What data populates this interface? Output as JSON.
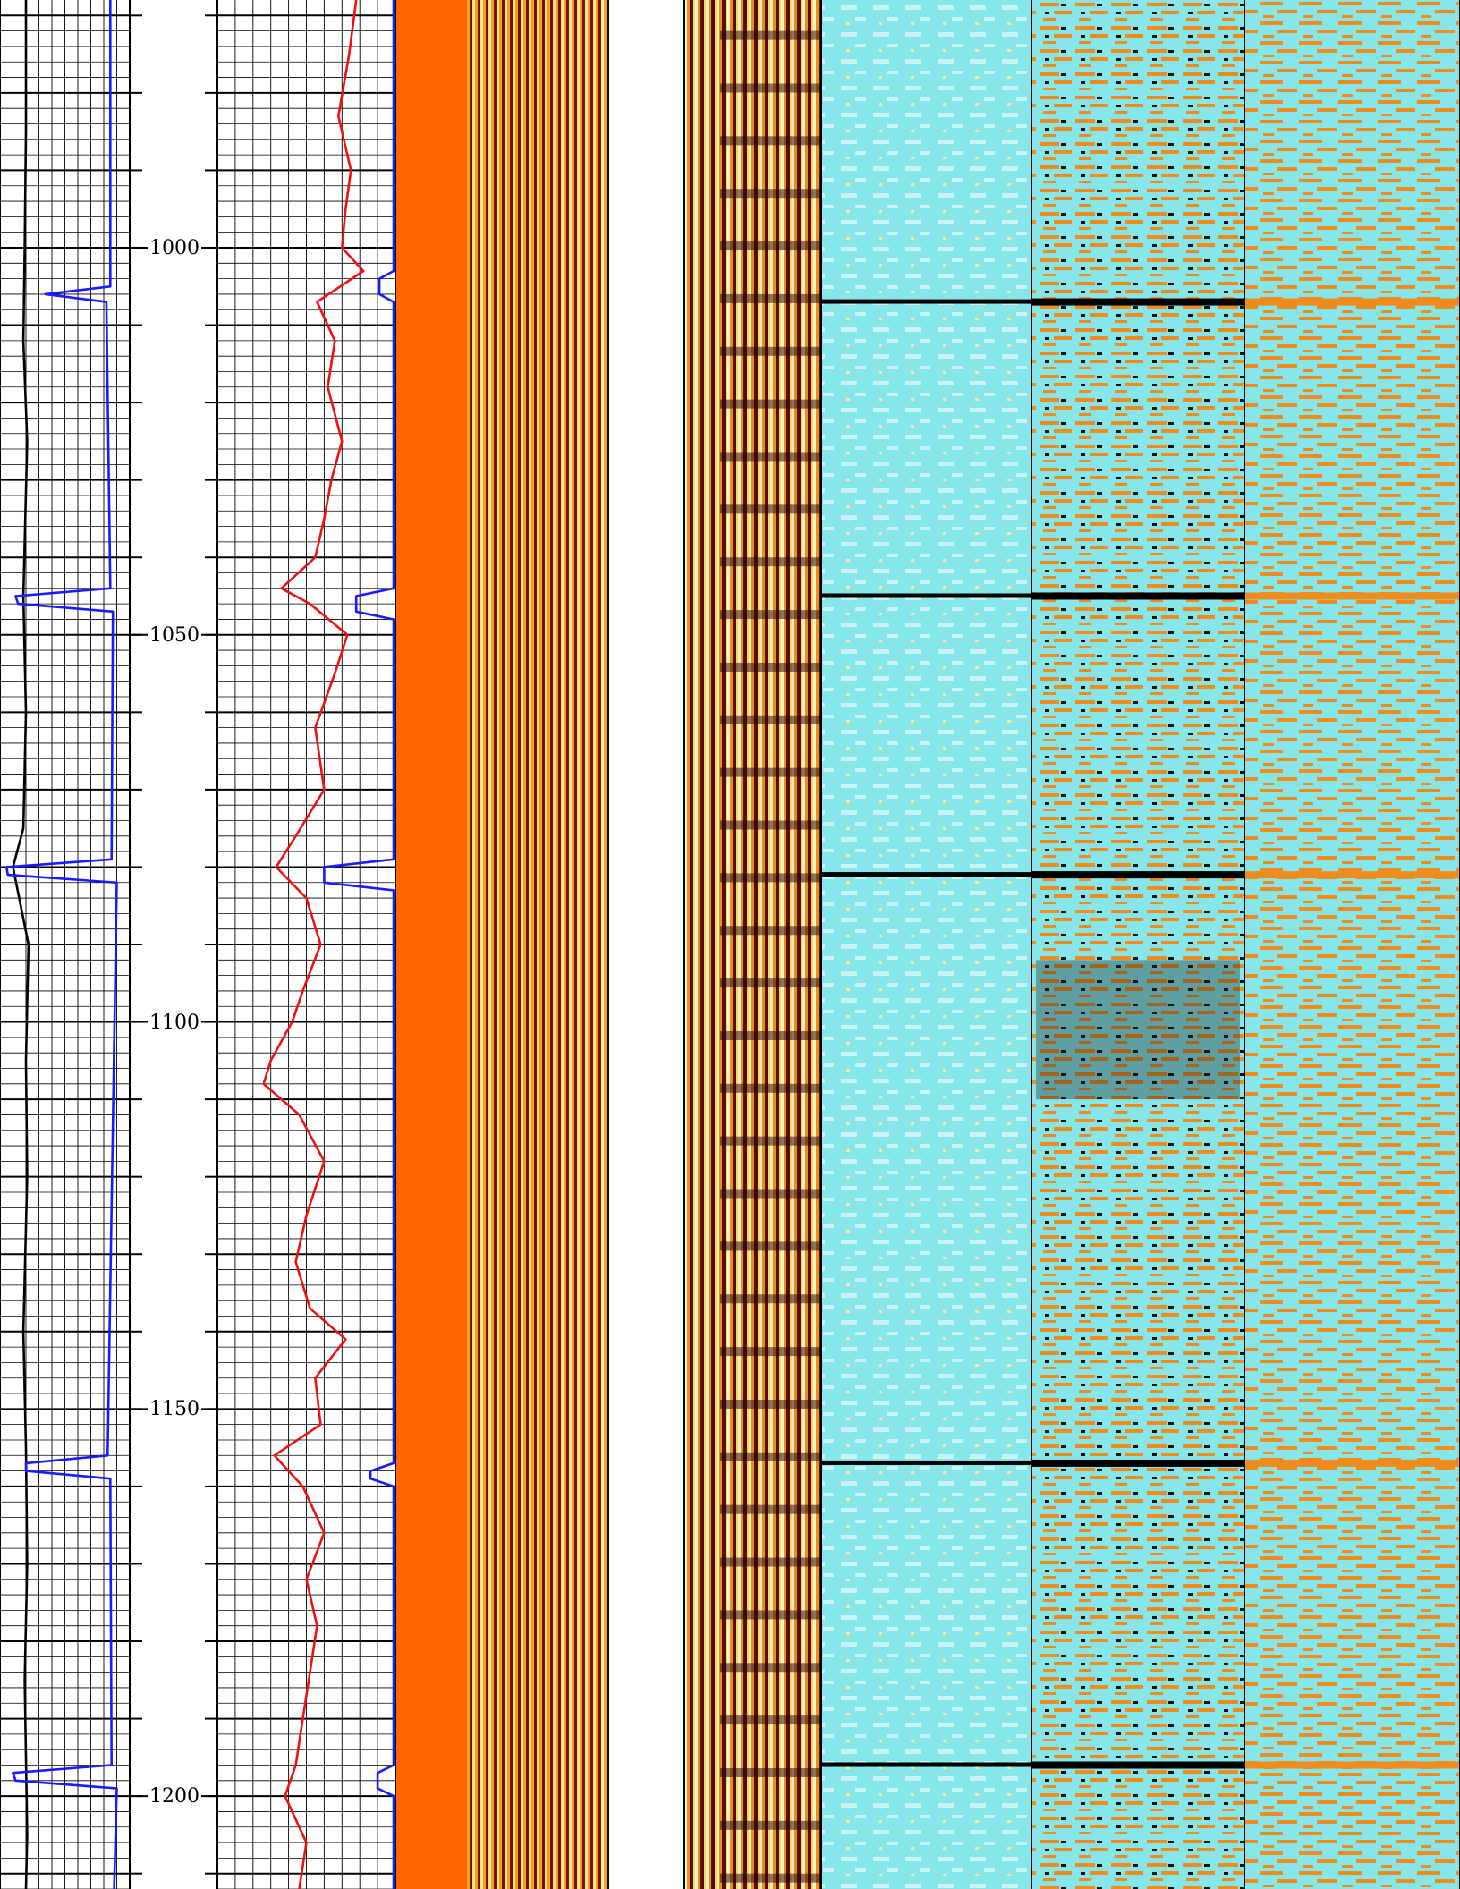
{
  "chart_data": {
    "type": "line",
    "title": "",
    "xlabel": "",
    "ylabel": "",
    "depth_range": [
      968,
      1212
    ],
    "depth_ticks": [
      1000,
      1050,
      1100,
      1150,
      1200
    ],
    "depth_tick_labels": [
      "1000",
      "1050",
      "1100",
      "1150",
      "1200"
    ],
    "tracks": [
      {
        "name": "",
        "kind": "curves",
        "grid": true
      },
      {
        "name": "",
        "kind": "depth"
      },
      {
        "name": "",
        "kind": "curves",
        "grid": true
      },
      {
        "name": "",
        "kind": "waveform"
      },
      {
        "name": "",
        "kind": "waveform"
      },
      {
        "name": "",
        "kind": "image"
      },
      {
        "name": "",
        "kind": "image"
      },
      {
        "name": "",
        "kind": "image"
      }
    ],
    "series": [
      {
        "track": 0,
        "color": "#000000",
        "depth": [
          968,
          985,
          1000,
          1012,
          1025,
          1045,
          1060,
          1075,
          1080,
          1090,
          1105,
          1120,
          1140,
          1155,
          1170,
          1185,
          1195,
          1205,
          1212
        ],
        "values": [
          0.2,
          0.2,
          0.19,
          0.18,
          0.21,
          0.18,
          0.2,
          0.18,
          0.1,
          0.22,
          0.2,
          0.21,
          0.18,
          0.2,
          0.21,
          0.19,
          0.2,
          0.21,
          0.2
        ]
      },
      {
        "track": 0,
        "color": "#1a1aff",
        "depth": [
          968,
          1005,
          1006,
          1007,
          1044,
          1045,
          1046,
          1047,
          1079,
          1080,
          1081,
          1082,
          1156,
          1157,
          1158,
          1159,
          1196,
          1197,
          1198,
          1199,
          1212
        ],
        "values": [
          0.85,
          0.85,
          0.35,
          0.82,
          0.85,
          0.12,
          0.14,
          0.87,
          0.86,
          0.05,
          0.06,
          0.9,
          0.83,
          0.2,
          0.2,
          0.85,
          0.86,
          0.1,
          0.12,
          0.9,
          0.88
        ]
      },
      {
        "track": 2,
        "color": "#ee1111",
        "depth": [
          968,
          975,
          983,
          990,
          995,
          1000,
          1003,
          1007,
          1012,
          1018,
          1025,
          1030,
          1035,
          1040,
          1044,
          1046,
          1050,
          1055,
          1062,
          1070,
          1076,
          1080,
          1084,
          1090,
          1096,
          1100,
          1105,
          1108,
          1112,
          1118,
          1125,
          1131,
          1137,
          1141,
          1146,
          1152,
          1156,
          1160,
          1166,
          1172,
          1178,
          1184,
          1190,
          1196,
          1200,
          1206,
          1212
        ],
        "values": [
          0.78,
          0.74,
          0.68,
          0.75,
          0.72,
          0.7,
          0.82,
          0.56,
          0.66,
          0.62,
          0.7,
          0.64,
          0.6,
          0.55,
          0.36,
          0.52,
          0.73,
          0.66,
          0.55,
          0.6,
          0.44,
          0.33,
          0.5,
          0.58,
          0.48,
          0.42,
          0.3,
          0.26,
          0.46,
          0.6,
          0.5,
          0.44,
          0.52,
          0.72,
          0.55,
          0.58,
          0.32,
          0.48,
          0.6,
          0.5,
          0.56,
          0.52,
          0.48,
          0.44,
          0.38,
          0.5,
          0.46
        ]
      },
      {
        "track": 2,
        "color": "#1a1aff",
        "depth": [
          968,
          1003,
          1004,
          1006,
          1007,
          1044,
          1045,
          1047,
          1048,
          1079,
          1080,
          1082,
          1083,
          1157,
          1158,
          1159,
          1160,
          1196,
          1197,
          1199,
          1200,
          1212
        ],
        "values": [
          0.99,
          0.99,
          0.91,
          0.91,
          0.99,
          0.99,
          0.78,
          0.78,
          0.99,
          0.99,
          0.6,
          0.6,
          0.99,
          0.99,
          0.86,
          0.86,
          0.99,
          0.99,
          0.9,
          0.9,
          0.99,
          0.99
        ]
      }
    ],
    "events": [
      1007,
      1045,
      1081,
      1157,
      1196
    ],
    "legend": "none",
    "grid": true
  }
}
